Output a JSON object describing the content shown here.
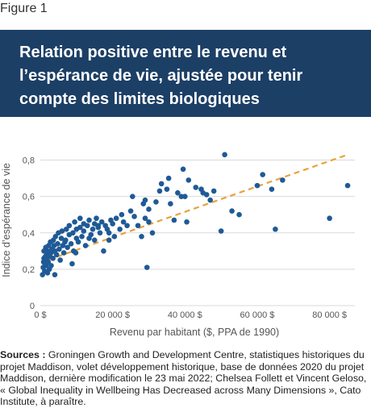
{
  "figure_label": "Figure 1",
  "colors": {
    "banner": "#1c3f66",
    "points": "#1f5a96",
    "trend": "#e8a33a",
    "grid": "#d9d9d9"
  },
  "sources": {
    "label": "Sources :",
    "text": " Groningen Growth and Development Centre, statistiques historiques du projet Maddison, volet développement historique, base de données 2020 du projet Maddison, dernière modification le 23 mai 2022; Chelsea Follett et Vincent Geloso, « Global Inequality in Wellbeing Has Decreased across Many Dimensions », Cato Institute, à paraître."
  },
  "chart_data": {
    "type": "scatter",
    "title": "Relation positive entre le revenu et l’espérance de vie, ajustée pour tenir compte des limites biologiques",
    "xlabel": "Revenu par habitant ($, PPA de 1990)",
    "ylabel": "Indice d’espérance de vie",
    "xlim": [
      0,
      87000
    ],
    "ylim": [
      0,
      0.9
    ],
    "x_ticks": [
      0,
      20000,
      40000,
      60000,
      80000
    ],
    "x_tick_labels": [
      "0 $",
      "20 000 $",
      "40 000 $",
      "60 000 $",
      "80 000 $"
    ],
    "y_ticks": [
      0,
      0.2,
      0.4,
      0.6,
      0.8
    ],
    "y_tick_labels": [
      "0",
      "0,2",
      "0,4",
      "0,6",
      "0,8"
    ],
    "grid": true,
    "trend_line": {
      "style": "dashed",
      "x": [
        2000,
        85000
      ],
      "y": [
        0.25,
        0.83
      ]
    },
    "series": [
      {
        "points": [
          [
            600,
            0.17
          ],
          [
            800,
            0.21
          ],
          [
            900,
            0.24
          ],
          [
            1000,
            0.26
          ],
          [
            1000,
            0.3
          ],
          [
            1200,
            0.19
          ],
          [
            1300,
            0.23
          ],
          [
            1400,
            0.27
          ],
          [
            1500,
            0.32
          ],
          [
            1600,
            0.22
          ],
          [
            1700,
            0.25
          ],
          [
            1800,
            0.28
          ],
          [
            2000,
            0.18
          ],
          [
            2000,
            0.3
          ],
          [
            2200,
            0.24
          ],
          [
            2300,
            0.33
          ],
          [
            2500,
            0.2
          ],
          [
            2600,
            0.27
          ],
          [
            2800,
            0.35
          ],
          [
            3000,
            0.22
          ],
          [
            3000,
            0.29
          ],
          [
            3200,
            0.31
          ],
          [
            3500,
            0.26
          ],
          [
            3600,
            0.36
          ],
          [
            3800,
            0.33
          ],
          [
            4000,
            0.17
          ],
          [
            4000,
            0.3
          ],
          [
            4200,
            0.38
          ],
          [
            4500,
            0.28
          ],
          [
            4800,
            0.34
          ],
          [
            5000,
            0.4
          ],
          [
            5200,
            0.31
          ],
          [
            5500,
            0.25
          ],
          [
            5800,
            0.37
          ],
          [
            6000,
            0.41
          ],
          [
            6200,
            0.33
          ],
          [
            6500,
            0.29
          ],
          [
            7000,
            0.36
          ],
          [
            7200,
            0.42
          ],
          [
            7500,
            0.32
          ],
          [
            8000,
            0.39
          ],
          [
            8000,
            0.44
          ],
          [
            8500,
            0.34
          ],
          [
            8800,
            0.23
          ],
          [
            9000,
            0.4
          ],
          [
            9200,
            0.3
          ],
          [
            9500,
            0.46
          ],
          [
            10000,
            0.37
          ],
          [
            10000,
            0.42
          ],
          [
            10500,
            0.35
          ],
          [
            11000,
            0.43
          ],
          [
            11000,
            0.48
          ],
          [
            11500,
            0.38
          ],
          [
            12000,
            0.41
          ],
          [
            12000,
            0.45
          ],
          [
            12500,
            0.33
          ],
          [
            13000,
            0.44
          ],
          [
            13500,
            0.47
          ],
          [
            14000,
            0.39
          ],
          [
            14500,
            0.42
          ],
          [
            15000,
            0.45
          ],
          [
            15000,
            0.36
          ],
          [
            15500,
            0.48
          ],
          [
            16000,
            0.43
          ],
          [
            16500,
            0.4
          ],
          [
            17000,
            0.46
          ],
          [
            17500,
            0.3
          ],
          [
            18000,
            0.44
          ],
          [
            18500,
            0.42
          ],
          [
            19000,
            0.4
          ],
          [
            19500,
            0.47
          ],
          [
            20000,
            0.45
          ],
          [
            20500,
            0.38
          ],
          [
            21000,
            0.48
          ],
          [
            22000,
            0.42
          ],
          [
            22500,
            0.5
          ],
          [
            23000,
            0.46
          ],
          [
            24000,
            0.44
          ],
          [
            25000,
            0.52
          ],
          [
            25500,
            0.6
          ],
          [
            26000,
            0.49
          ],
          [
            27000,
            0.44
          ],
          [
            28000,
            0.38
          ],
          [
            28500,
            0.56
          ],
          [
            29000,
            0.58
          ],
          [
            30000,
            0.53
          ],
          [
            30000,
            0.46
          ],
          [
            31000,
            0.4
          ],
          [
            32000,
            0.57
          ],
          [
            33000,
            0.63
          ],
          [
            33500,
            0.67
          ],
          [
            35000,
            0.64
          ],
          [
            35500,
            0.7
          ],
          [
            36000,
            0.56
          ],
          [
            37000,
            0.47
          ],
          [
            38000,
            0.62
          ],
          [
            39000,
            0.6
          ],
          [
            39500,
            0.75
          ],
          [
            40000,
            0.6
          ],
          [
            40500,
            0.46
          ],
          [
            41000,
            0.69
          ],
          [
            43000,
            0.65
          ],
          [
            44500,
            0.64
          ],
          [
            45000,
            0.62
          ],
          [
            46000,
            0.61
          ],
          [
            47000,
            0.58
          ],
          [
            48000,
            0.63
          ],
          [
            50000,
            0.41
          ],
          [
            51000,
            0.83
          ],
          [
            53000,
            0.52
          ],
          [
            55000,
            0.5
          ],
          [
            60000,
            0.66
          ],
          [
            61500,
            0.72
          ],
          [
            64000,
            0.64
          ],
          [
            65000,
            0.42
          ],
          [
            67000,
            0.69
          ],
          [
            80000,
            0.48
          ],
          [
            85000,
            0.66
          ],
          [
            19000,
            0.36
          ],
          [
            29500,
            0.21
          ],
          [
            29000,
            0.48
          ],
          [
            13500,
            0.37
          ],
          [
            16000,
            0.44
          ],
          [
            6800,
            0.35
          ],
          [
            9800,
            0.29
          ]
        ]
      }
    ]
  }
}
